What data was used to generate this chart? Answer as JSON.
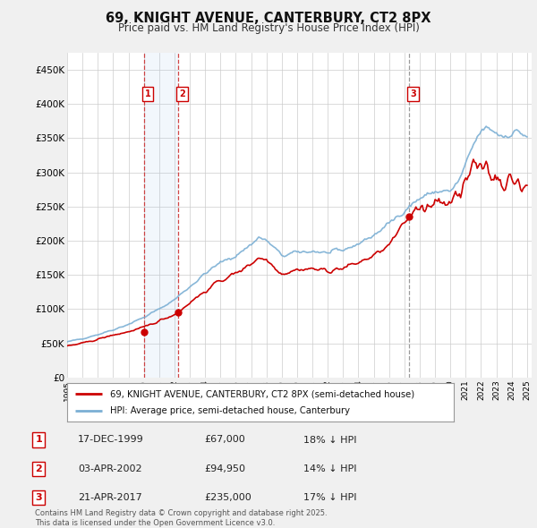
{
  "title": "69, KNIGHT AVENUE, CANTERBURY, CT2 8PX",
  "subtitle": "Price paid vs. HM Land Registry's House Price Index (HPI)",
  "legend_line1": "69, KNIGHT AVENUE, CANTERBURY, CT2 8PX (semi-detached house)",
  "legend_line2": "HPI: Average price, semi-detached house, Canterbury",
  "sale1_date": "17-DEC-1999",
  "sale1_price": 67000,
  "sale1_label": "18% ↓ HPI",
  "sale2_date": "03-APR-2002",
  "sale2_price": 94950,
  "sale2_label": "14% ↓ HPI",
  "sale3_date": "21-APR-2017",
  "sale3_price": 235000,
  "sale3_label": "17% ↓ HPI",
  "footnote": "Contains HM Land Registry data © Crown copyright and database right 2025.\nThis data is licensed under the Open Government Licence v3.0.",
  "hpi_color": "#7bafd4",
  "price_color": "#cc0000",
  "background_color": "#f0f0f0",
  "plot_bg_color": "#ffffff",
  "ylim": [
    0,
    475000
  ],
  "yticks": [
    0,
    50000,
    100000,
    150000,
    200000,
    250000,
    300000,
    350000,
    400000,
    450000
  ],
  "sale1_x": 2000.0,
  "sale2_x": 2002.25,
  "sale3_x": 2017.31
}
